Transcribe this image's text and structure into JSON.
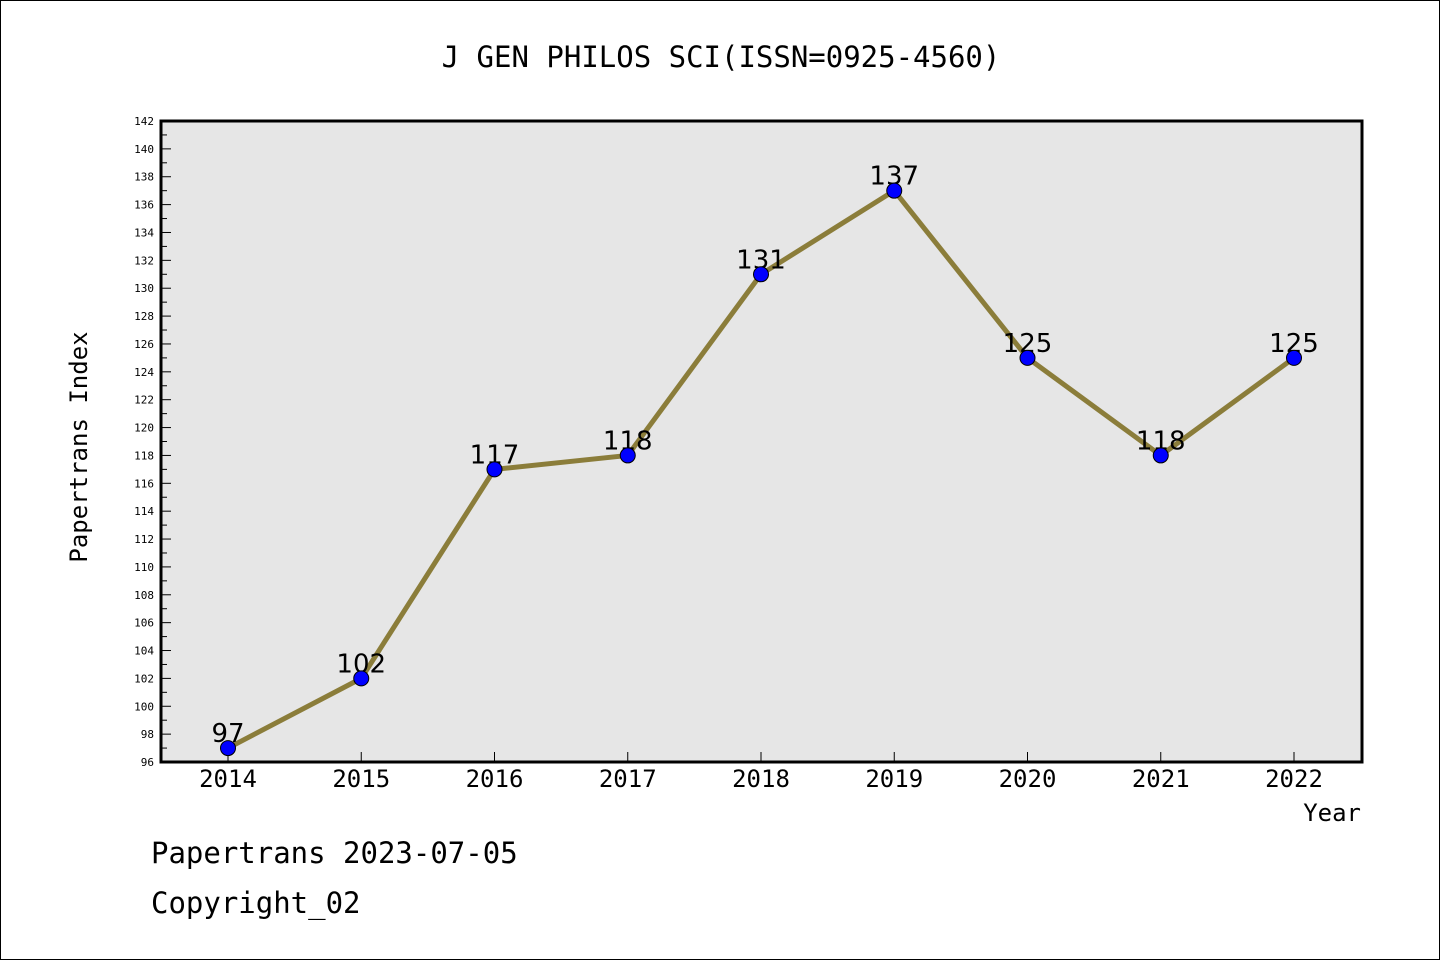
{
  "chart_data": {
    "type": "line",
    "title": "J GEN PHILOS SCI(ISSN=0925-4560)",
    "xlabel": "Year",
    "ylabel": "Papertrans Index",
    "categories": [
      "2014",
      "2015",
      "2016",
      "2017",
      "2018",
      "2019",
      "2020",
      "2021",
      "2022"
    ],
    "series": [
      {
        "values": [
          97,
          102,
          117,
          118,
          131,
          137,
          125,
          118,
          125
        ]
      }
    ],
    "data_labels": [
      "97",
      "102",
      "117",
      "118",
      "131",
      "137",
      "125",
      "118",
      "125"
    ],
    "ylim": [
      96,
      142
    ],
    "y_ticks": [
      "96",
      "98",
      "100",
      "102",
      "104",
      "106",
      "108",
      "110",
      "112",
      "114",
      "116",
      "118",
      "120",
      "122",
      "124",
      "126",
      "128",
      "130",
      "132",
      "134",
      "136",
      "138",
      "140",
      "142"
    ],
    "grid": false,
    "legend": "none",
    "colors": {
      "line": "#8b7d3a",
      "marker": "#0000ff",
      "plot_background": "#e6e6e6"
    }
  },
  "footer": {
    "line1": "Papertrans 2023-07-05",
    "line2": "Copyright_02"
  }
}
